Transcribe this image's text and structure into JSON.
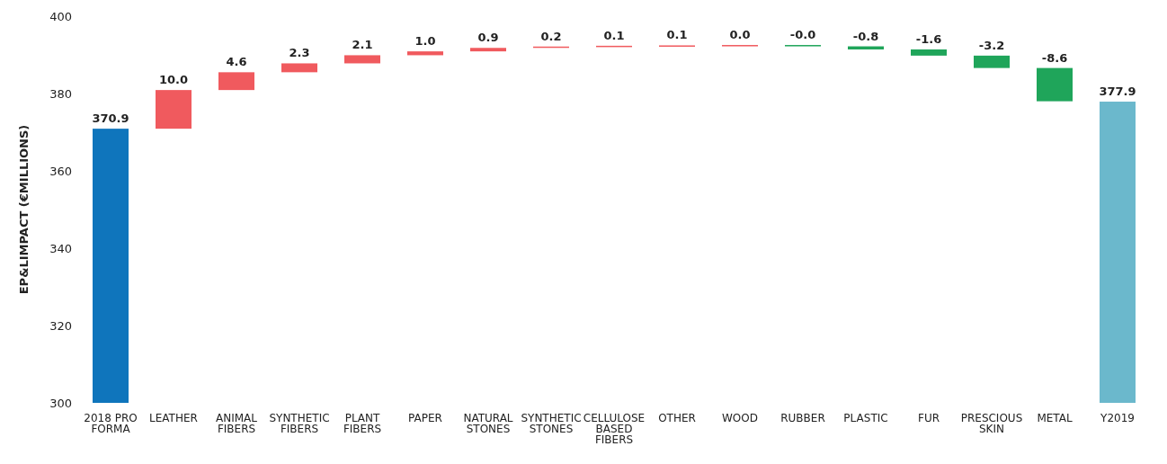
{
  "chart_data": {
    "type": "bar",
    "ylabel": "EP&LIMPACT (€MILLIONS)",
    "categories": [
      "2018 PRO FORMA",
      "LEATHER",
      "ANIMAL FIBERS",
      "SYNTHETIC FIBERS",
      "PLANT FIBERS",
      "PAPER",
      "NATURAL STONES",
      "SYNTHETIC STONES",
      "CELLULOSE BASED FIBERS",
      "OTHER",
      "WOOD",
      "RUBBER",
      "PLASTIC",
      "FUR",
      "PRESCIOUS SKIN",
      "METAL",
      "Y2019"
    ],
    "values": [
      370.9,
      10.0,
      4.6,
      2.3,
      2.1,
      1.0,
      0.9,
      0.2,
      0.1,
      0.1,
      0.0,
      -0.0,
      -0.8,
      -1.6,
      -3.2,
      -8.6,
      377.9
    ],
    "base": [
      0,
      370.9,
      380.9,
      385.5,
      387.8,
      389.9,
      390.9,
      391.8,
      392.0,
      392.1,
      392.2,
      392.2,
      392.2,
      391.4,
      389.8,
      386.6,
      0
    ],
    "value_labels": [
      "370.9",
      "10.0",
      "4.6",
      "2.3",
      "2.1",
      "1.0",
      "0.9",
      "0.2",
      "0.1",
      "0.1",
      "0.0",
      "-0.0",
      "-0.8",
      "-1.6",
      "-3.2",
      "-8.6",
      "377.9"
    ],
    "colors": [
      "#0f75bc",
      "#f05a5e",
      "#f05a5e",
      "#f05a5e",
      "#f05a5e",
      "#f05a5e",
      "#f05a5e",
      "#f05a5e",
      "#f05a5e",
      "#f05a5e",
      "#f05a5e",
      "#1fa55a",
      "#1fa55a",
      "#1fa55a",
      "#1fa55a",
      "#1fa55a",
      "#6bb8cc"
    ],
    "ylim": [
      300,
      400
    ],
    "yticks": [
      300,
      320,
      340,
      360,
      380,
      400
    ],
    "grid": false,
    "legend": false
  }
}
